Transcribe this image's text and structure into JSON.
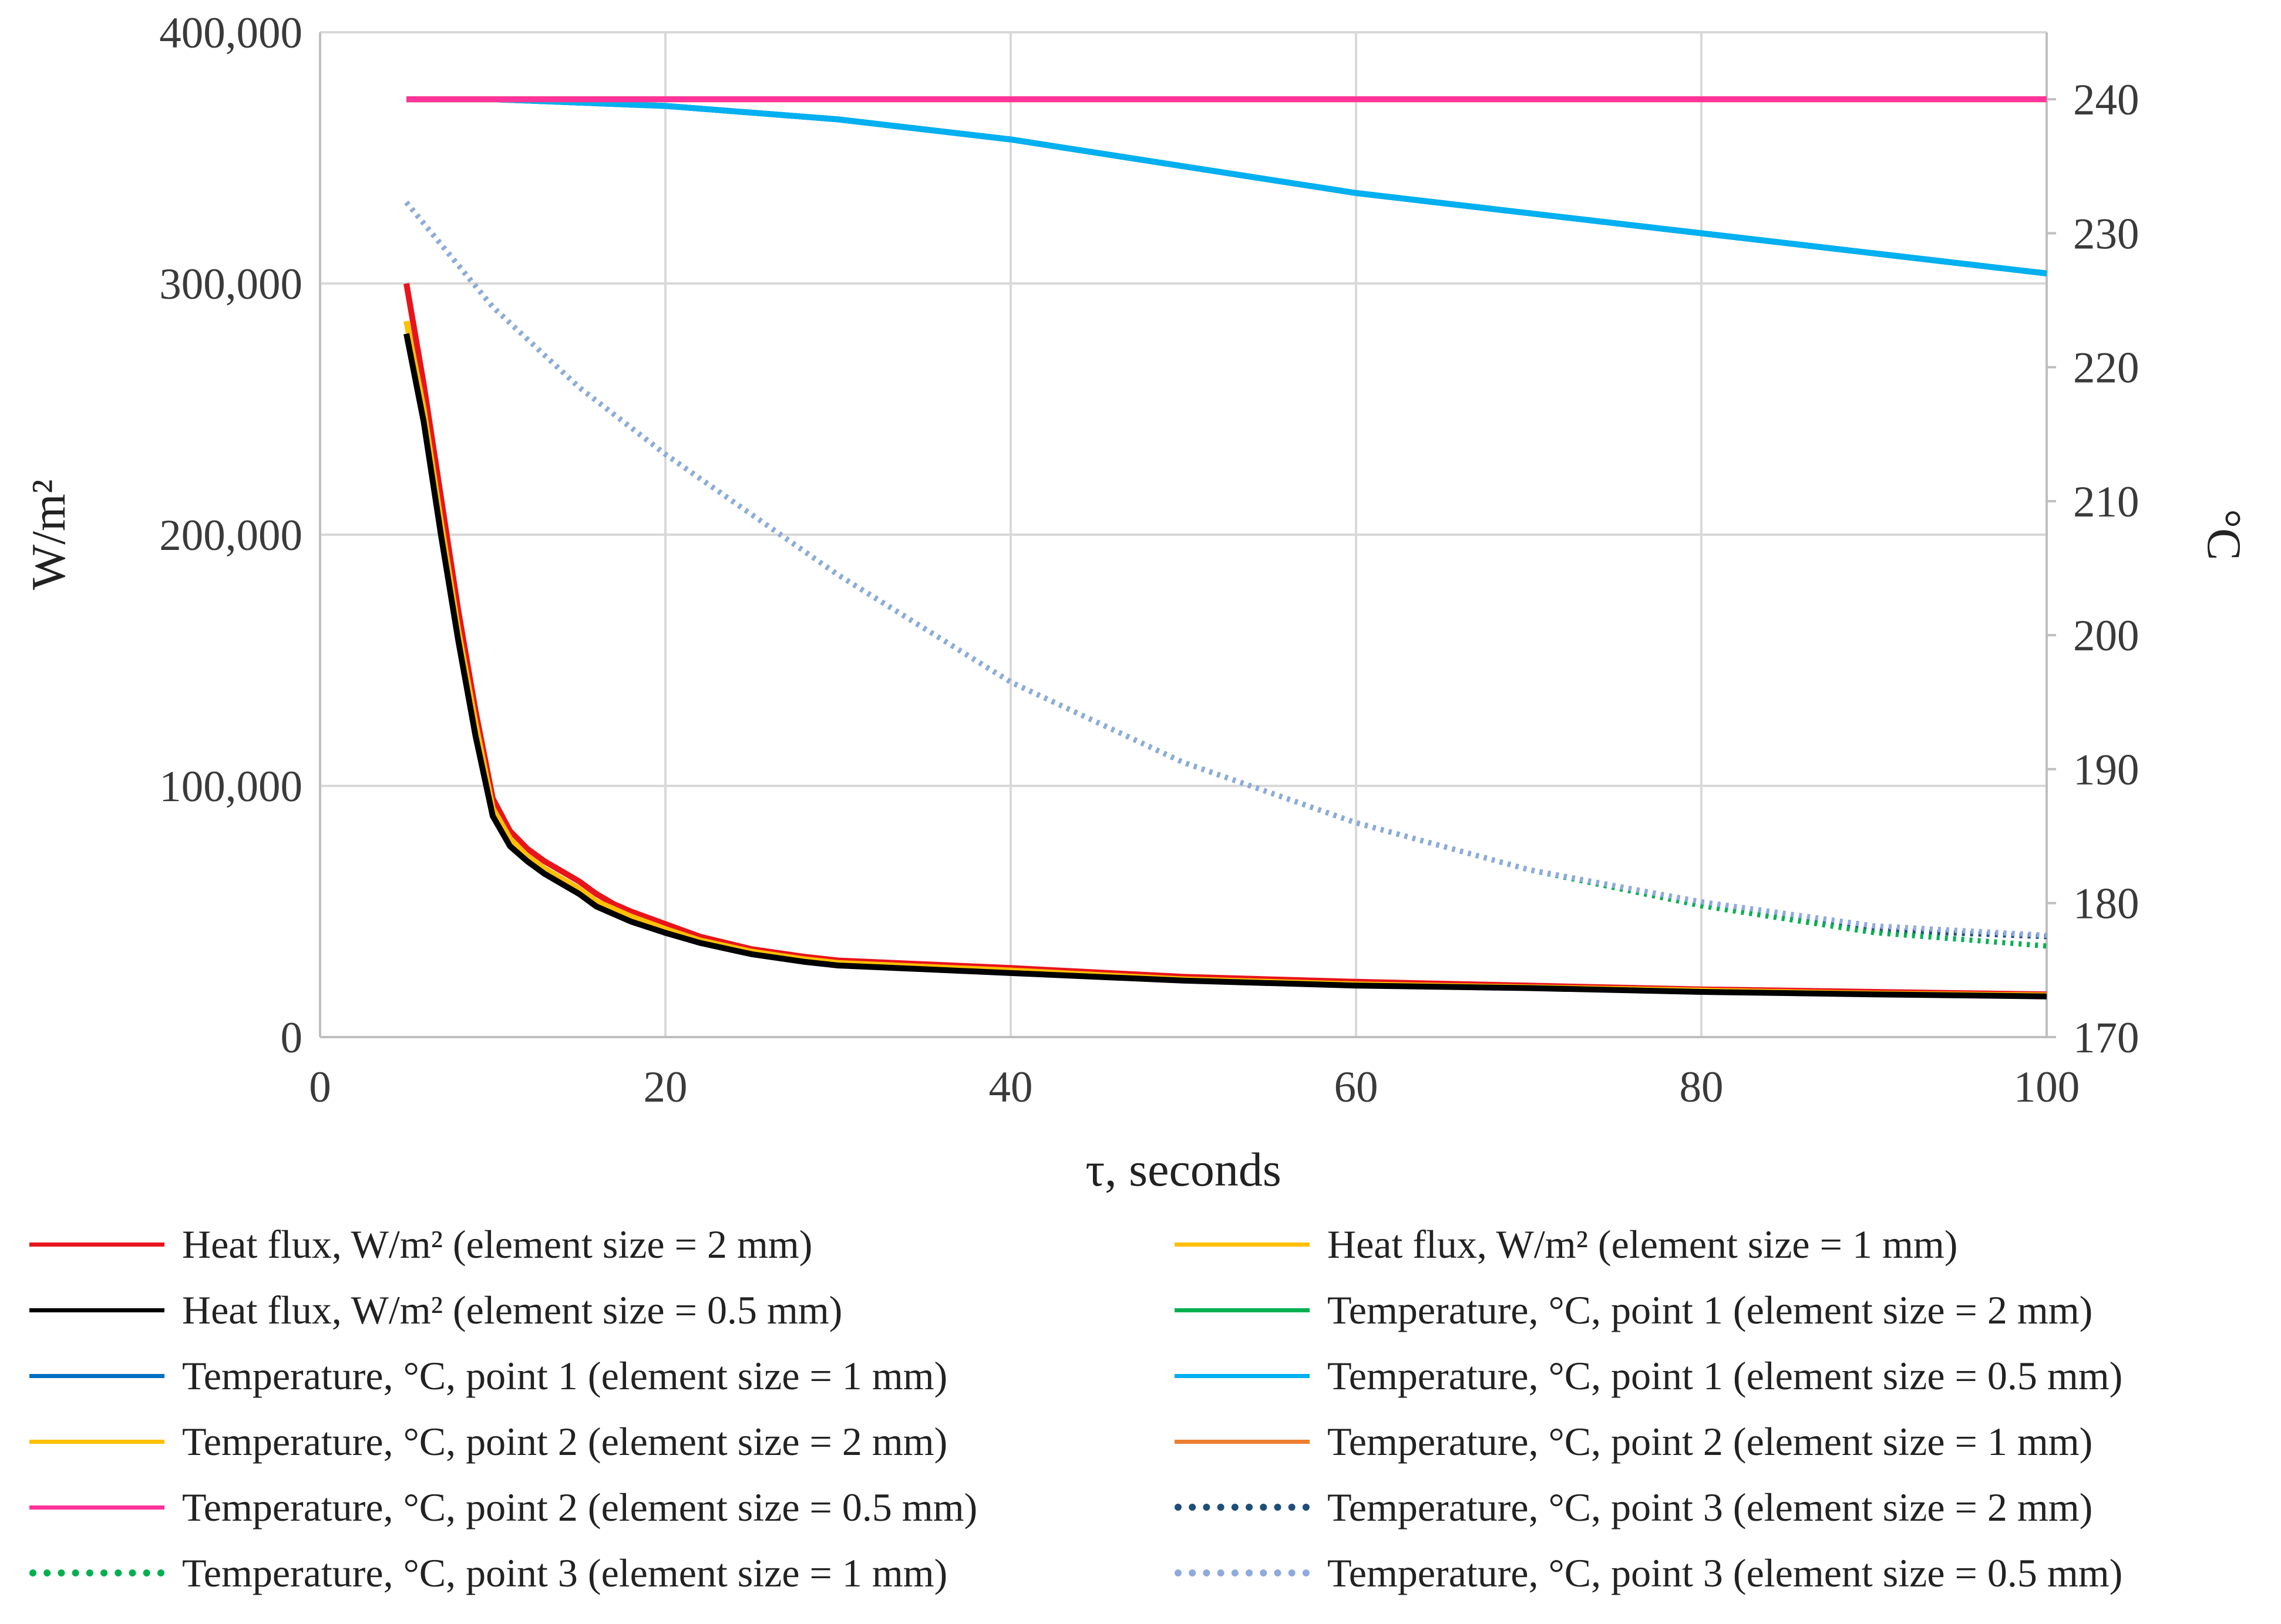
{
  "chart_data": {
    "type": "line",
    "title": "",
    "xlabel": "τ, seconds",
    "ylabel_left": "W/m²",
    "ylabel_right": "°C",
    "xlim": [
      0,
      100
    ],
    "ylim_left": [
      0,
      400000
    ],
    "ylim_right": [
      170,
      245
    ],
    "x_ticks": [
      "0",
      "20",
      "40",
      "60",
      "80",
      "100"
    ],
    "y_left_ticks": [
      "0",
      "100,000",
      "200,000",
      "300,000",
      "400,000"
    ],
    "y_right_ticks": [
      "170",
      "180",
      "190",
      "200",
      "210",
      "220",
      "230",
      "240"
    ],
    "grid": true,
    "legend_position": "bottom",
    "series": [
      {
        "name": "Heat flux, W/m² (element size = 2 mm)",
        "axis": "left",
        "color": "#e8141c",
        "style": "solid",
        "x": [
          5,
          6,
          7,
          8,
          9,
          10,
          11,
          12,
          13,
          14,
          15,
          16,
          17,
          18,
          20,
          22,
          25,
          28,
          30,
          35,
          40,
          50,
          60,
          70,
          80,
          90,
          100
        ],
        "y": [
          300000,
          260000,
          215000,
          170000,
          130000,
          95000,
          82000,
          75000,
          70000,
          66000,
          62000,
          57000,
          53000,
          50000,
          45000,
          40000,
          35000,
          32000,
          30500,
          29000,
          27500,
          24000,
          22000,
          20500,
          19000,
          18000,
          17000
        ]
      },
      {
        "name": "Heat flux, W/m² (element size = 1 mm)",
        "axis": "left",
        "color": "#ffc000",
        "style": "solid",
        "x": [
          5,
          6,
          7,
          8,
          9,
          10,
          11,
          12,
          13,
          14,
          15,
          16,
          17,
          18,
          20,
          22,
          25,
          28,
          30,
          35,
          40,
          50,
          60,
          70,
          80,
          90,
          100
        ],
        "y": [
          285000,
          250000,
          205000,
          162000,
          125000,
          91000,
          79000,
          72000,
          67000,
          63000,
          59000,
          54000,
          51000,
          48000,
          43000,
          38500,
          34000,
          31000,
          29500,
          28000,
          26500,
          23000,
          21000,
          19800,
          18500,
          17300,
          16600
        ]
      },
      {
        "name": "Heat flux, W/m² (element size = 0.5 mm)",
        "axis": "left",
        "color": "#000000",
        "style": "solid",
        "x": [
          5,
          6,
          7,
          8,
          9,
          10,
          11,
          12,
          13,
          14,
          15,
          16,
          17,
          18,
          20,
          22,
          25,
          28,
          30,
          35,
          40,
          50,
          60,
          70,
          80,
          90,
          100
        ],
        "y": [
          280000,
          245000,
          200000,
          158000,
          120000,
          88000,
          76000,
          70000,
          65000,
          61000,
          57000,
          52000,
          49000,
          46000,
          41500,
          37500,
          33000,
          30000,
          28500,
          27000,
          25500,
          22500,
          20500,
          19500,
          18000,
          17000,
          16200
        ]
      },
      {
        "name": "Temperature, °C, point 1 (element size = 2 mm)",
        "axis": "right",
        "color": "#00b050",
        "style": "solid",
        "x": [
          5,
          10,
          20,
          30,
          40,
          50,
          60,
          70,
          80,
          90,
          100
        ],
        "y": [
          240,
          240,
          239.5,
          238.5,
          237,
          235,
          233,
          231.5,
          230,
          228.5,
          227
        ]
      },
      {
        "name": "Temperature, °C, point 1 (element size = 1 mm)",
        "axis": "right",
        "color": "#0070c0",
        "style": "solid",
        "x": [
          5,
          10,
          20,
          30,
          40,
          50,
          60,
          70,
          80,
          90,
          100
        ],
        "y": [
          240,
          240,
          239.5,
          238.5,
          237,
          235,
          233,
          231.5,
          230,
          228.5,
          227
        ]
      },
      {
        "name": "Temperature, °C, point 1 (element size = 0.5 mm)",
        "axis": "right",
        "color": "#00b0f0",
        "style": "solid",
        "x": [
          5,
          10,
          20,
          30,
          40,
          50,
          60,
          70,
          80,
          90,
          100
        ],
        "y": [
          240,
          240,
          239.5,
          238.5,
          237,
          235,
          233,
          231.5,
          230,
          228.5,
          227
        ]
      },
      {
        "name": "Temperature, °C, point 2 (element size = 2 mm)",
        "axis": "right",
        "color": "#ffc000",
        "style": "solid",
        "x": [
          5,
          100
        ],
        "y": [
          240,
          240
        ]
      },
      {
        "name": "Temperature, °C, point 2 (element size = 1 mm)",
        "axis": "right",
        "color": "#ed7d31",
        "style": "solid",
        "x": [
          5,
          100
        ],
        "y": [
          240,
          240
        ]
      },
      {
        "name": "Temperature, °C, point 2 (element size = 0.5 mm)",
        "axis": "right",
        "color": "#ff3399",
        "style": "solid",
        "x": [
          5,
          100
        ],
        "y": [
          240,
          240
        ]
      },
      {
        "name": "Temperature, °C, point 3 (element size = 2 mm)",
        "axis": "right",
        "color": "#1f4e79",
        "style": "dotted",
        "x": [
          5,
          10,
          15,
          20,
          30,
          40,
          50,
          60,
          70,
          80,
          90,
          100
        ],
        "y": [
          232.3,
          224.5,
          218.5,
          213.5,
          204.5,
          196.5,
          190.5,
          186,
          182.5,
          180,
          178,
          177.5
        ]
      },
      {
        "name": "Temperature, °C, point 3 (element size = 1 mm)",
        "axis": "right",
        "color": "#00b050",
        "style": "dotted",
        "x": [
          5,
          10,
          15,
          20,
          30,
          40,
          50,
          60,
          70,
          80,
          90,
          100
        ],
        "y": [
          232.3,
          224.5,
          218.5,
          213.5,
          204.5,
          196.5,
          190.5,
          186,
          182.5,
          179.8,
          177.8,
          176.8
        ]
      },
      {
        "name": "Temperature, °C, point 3 (element size = 0.5 mm)",
        "axis": "right",
        "color": "#8faadc",
        "style": "dotted",
        "x": [
          5,
          10,
          15,
          20,
          30,
          40,
          50,
          60,
          70,
          80,
          90,
          100
        ],
        "y": [
          232.3,
          224.5,
          218.5,
          213.5,
          204.5,
          196.5,
          190.5,
          186,
          182.5,
          180.1,
          178.3,
          177.6
        ]
      }
    ]
  }
}
